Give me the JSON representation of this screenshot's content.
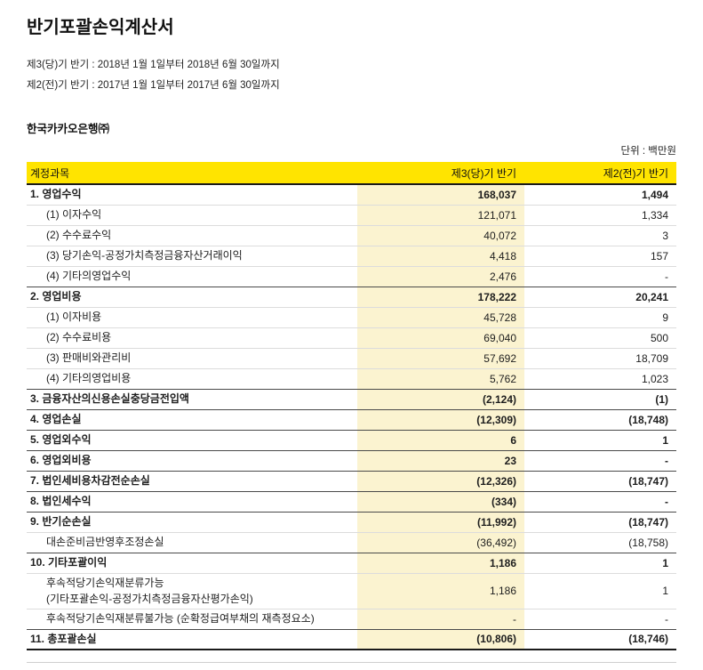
{
  "title": "반기포괄손익계산서",
  "period_lines": [
    "제3(당)기 반기 : 2018년 1월 1일부터 2018년 6월 30일까지",
    "제2(전)기 반기 : 2017년 1월 1일부터 2017년 6월 30일까지"
  ],
  "company": "한국카카오은행㈜",
  "unit": "단위 : 백만원",
  "colors": {
    "header_bg": "#FFE400",
    "value_col_bg": "#FBF3D0"
  },
  "table": {
    "headers": [
      "계정과목",
      "제3(당)기 반기",
      "제2(전)기 반기"
    ],
    "rows": [
      {
        "label": "1. 영업수익",
        "current": "168,037",
        "prior": "1,494",
        "bold": true,
        "indent": false
      },
      {
        "label": "(1) 이자수익",
        "current": "121,071",
        "prior": "1,334",
        "bold": false,
        "indent": true
      },
      {
        "label": "(2) 수수료수익",
        "current": "40,072",
        "prior": "3",
        "bold": false,
        "indent": true
      },
      {
        "label": "(3) 당기손익-공정가치측정금융자산거래이익",
        "current": "4,418",
        "prior": "157",
        "bold": false,
        "indent": true
      },
      {
        "label": "(4) 기타의영업수익",
        "current": "2,476",
        "prior": "-",
        "bold": false,
        "indent": true
      },
      {
        "label": "2. 영업비용",
        "current": "178,222",
        "prior": "20,241",
        "bold": true,
        "indent": false
      },
      {
        "label": "(1) 이자비용",
        "current": "45,728",
        "prior": "9",
        "bold": false,
        "indent": true
      },
      {
        "label": "(2) 수수료비용",
        "current": "69,040",
        "prior": "500",
        "bold": false,
        "indent": true
      },
      {
        "label": "(3) 판매비와관리비",
        "current": "57,692",
        "prior": "18,709",
        "bold": false,
        "indent": true
      },
      {
        "label": "(4) 기타의영업비용",
        "current": "5,762",
        "prior": "1,023",
        "bold": false,
        "indent": true
      },
      {
        "label": "3. 금융자산의신용손실충당금전입액",
        "current": "(2,124)",
        "prior": "(1)",
        "bold": true,
        "indent": false
      },
      {
        "label": "4. 영업손실",
        "current": "(12,309)",
        "prior": "(18,748)",
        "bold": true,
        "indent": false
      },
      {
        "label": "5. 영업외수익",
        "current": "6",
        "prior": "1",
        "bold": true,
        "indent": false
      },
      {
        "label": "6. 영업외비용",
        "current": "23",
        "prior": "-",
        "bold": true,
        "indent": false
      },
      {
        "label": "7. 법인세비용차감전순손실",
        "current": "(12,326)",
        "prior": "(18,747)",
        "bold": true,
        "indent": false
      },
      {
        "label": "8. 법인세수익",
        "current": "(334)",
        "prior": "-",
        "bold": true,
        "indent": false
      },
      {
        "label": "9. 반기순손실",
        "current": "(11,992)",
        "prior": "(18,747)",
        "bold": true,
        "indent": false
      },
      {
        "label": "대손준비금반영후조정손실",
        "current": "(36,492)",
        "prior": "(18,758)",
        "bold": false,
        "indent": true
      },
      {
        "label": "10. 기타포괄이익",
        "current": "1,186",
        "prior": "1",
        "bold": true,
        "indent": false
      },
      {
        "label": "후속적당기손익재분류가능",
        "label2": "(기타포괄손익-공정가치측정금융자산평가손익)",
        "current": "1,186",
        "prior": "1",
        "bold": false,
        "indent": true
      },
      {
        "label": "후속적당기손익재분류불가능 (순확정급여부채의 재측정요소)",
        "current": "-",
        "prior": "-",
        "bold": false,
        "indent": true
      },
      {
        "label": "11. 총포괄손실",
        "current": "(10,806)",
        "prior": "(18,746)",
        "bold": true,
        "indent": false
      }
    ]
  }
}
